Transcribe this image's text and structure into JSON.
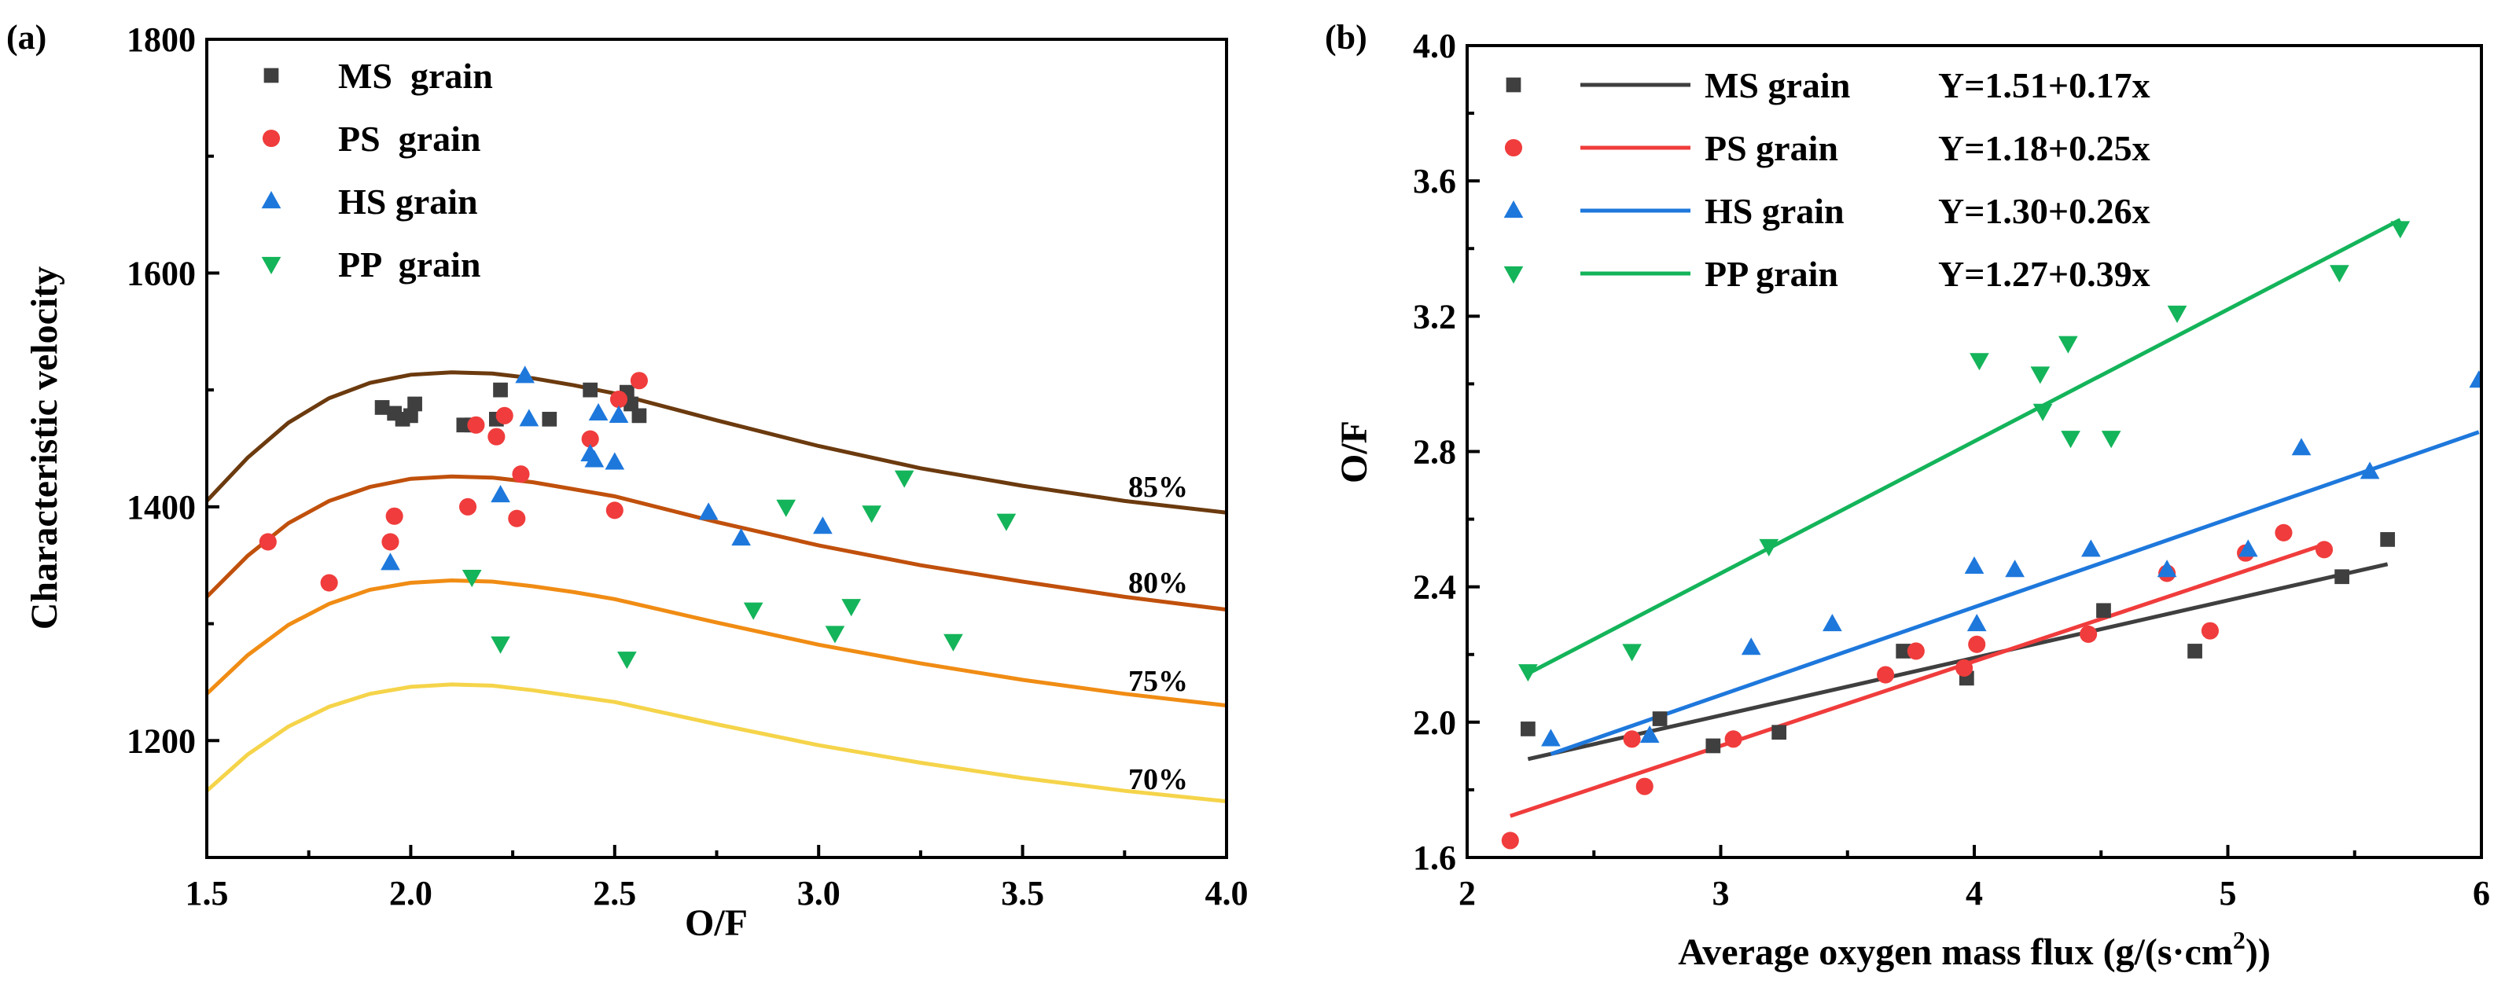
{
  "chart_data": [
    {
      "type": "scatter",
      "panel_label": "(a)",
      "xlabel": "O/F",
      "ylabel": "Characteristic velocity",
      "xlim": [
        1.5,
        4.0
      ],
      "ylim": [
        1100,
        1800
      ],
      "xticks": [
        "1.5",
        "2.0",
        "2.5",
        "3.0",
        "3.5",
        "4.0"
      ],
      "yticks": [
        "1200",
        "1400",
        "1600",
        "1800"
      ],
      "legend": [
        {
          "label": "MS  grain",
          "marker": "square",
          "color": "#3f3f3f"
        },
        {
          "label": "PS  grain",
          "marker": "circle",
          "color": "#f03c3c"
        },
        {
          "label": "HS grain",
          "marker": "triangle-up",
          "color": "#1e78dc"
        },
        {
          "label": "PP  grain",
          "marker": "triangle-down",
          "color": "#14b45a"
        }
      ],
      "series": [
        {
          "name": "MS grain",
          "x": [
            1.93,
            1.96,
            1.98,
            2.0,
            2.01,
            2.13,
            2.15,
            2.21,
            2.22,
            2.34,
            2.44,
            2.53,
            2.54,
            2.56
          ],
          "y": [
            1485,
            1480,
            1475,
            1478,
            1488,
            1470,
            1470,
            1475,
            1500,
            1475,
            1500,
            1498,
            1488,
            1478
          ]
        },
        {
          "name": "PS grain",
          "x": [
            1.65,
            1.8,
            1.95,
            1.96,
            2.14,
            2.16,
            2.21,
            2.23,
            2.26,
            2.27,
            2.44,
            2.5,
            2.51,
            2.56
          ],
          "y": [
            1370,
            1335,
            1370,
            1392,
            1400,
            1470,
            1460,
            1478,
            1390,
            1428,
            1458,
            1397,
            1492,
            1508
          ]
        },
        {
          "name": "HS grain",
          "x": [
            1.95,
            2.22,
            2.28,
            2.29,
            2.44,
            2.45,
            2.46,
            2.5,
            2.51,
            2.73,
            2.81,
            3.01
          ],
          "y": [
            1352,
            1410,
            1512,
            1475,
            1445,
            1440,
            1480,
            1438,
            1478,
            1395,
            1373,
            1383
          ]
        },
        {
          "name": "PP grain",
          "x": [
            2.15,
            2.22,
            2.53,
            2.84,
            2.92,
            3.04,
            3.08,
            3.13,
            3.21,
            3.33,
            3.46
          ],
          "y": [
            1340,
            1283,
            1270,
            1312,
            1400,
            1292,
            1315,
            1395,
            1425,
            1285,
            1388
          ]
        }
      ],
      "curves": [
        {
          "label": "85%",
          "color": "#6b3a0e",
          "x": [
            1.5,
            1.6,
            1.7,
            1.8,
            1.9,
            2.0,
            2.1,
            2.2,
            2.3,
            2.4,
            2.5,
            2.75,
            3.0,
            3.25,
            3.5,
            3.75,
            4.0
          ],
          "y": [
            1405,
            1442,
            1472,
            1493,
            1506,
            1513,
            1515,
            1514,
            1510,
            1504,
            1497,
            1474,
            1452,
            1433,
            1418,
            1405,
            1395
          ]
        },
        {
          "label": "80%",
          "color": "#c0500c",
          "x": [
            1.5,
            1.6,
            1.7,
            1.8,
            1.9,
            2.0,
            2.1,
            2.2,
            2.3,
            2.4,
            2.5,
            2.75,
            3.0,
            3.25,
            3.5,
            3.75,
            4.0
          ],
          "y": [
            1323,
            1358,
            1386,
            1405,
            1417,
            1424,
            1426,
            1425,
            1421,
            1415,
            1409,
            1387,
            1367,
            1350,
            1336,
            1323,
            1312
          ]
        },
        {
          "label": "75%",
          "color": "#f08c14",
          "x": [
            1.5,
            1.6,
            1.7,
            1.8,
            1.9,
            2.0,
            2.1,
            2.2,
            2.3,
            2.4,
            2.5,
            2.75,
            3.0,
            3.25,
            3.5,
            3.75,
            4.0
          ],
          "y": [
            1240,
            1273,
            1299,
            1317,
            1329,
            1335,
            1337,
            1336,
            1332,
            1327,
            1321,
            1301,
            1282,
            1266,
            1252,
            1240,
            1230
          ]
        },
        {
          "label": "70%",
          "color": "#f5d44a",
          "x": [
            1.5,
            1.6,
            1.7,
            1.8,
            1.9,
            2.0,
            2.1,
            2.2,
            2.3,
            2.4,
            2.5,
            2.75,
            3.0,
            3.25,
            3.5,
            3.75,
            4.0
          ],
          "y": [
            1157,
            1188,
            1212,
            1229,
            1240,
            1246,
            1248,
            1247,
            1243,
            1238,
            1233,
            1214,
            1196,
            1181,
            1168,
            1157,
            1148
          ]
        }
      ]
    },
    {
      "type": "scatter",
      "panel_label": "(b)",
      "xlabel": "Average oxygen mass flux (g/(s·cm",
      "xlabel_sup": "2",
      "xlabel_end": "))",
      "ylabel": "O/F",
      "xlim": [
        2,
        6
      ],
      "ylim": [
        1.6,
        4.0
      ],
      "xticks": [
        "2",
        "3",
        "4",
        "5",
        "6"
      ],
      "yticks": [
        "1.6",
        "2.0",
        "2.4",
        "2.8",
        "3.2",
        "3.6",
        "4.0"
      ],
      "legend": [
        {
          "label": "MS grain",
          "equation": "Y=1.51+0.17x",
          "marker": "square",
          "color": "#3f3f3f"
        },
        {
          "label": "PS grain",
          "equation": "Y=1.18+0.25x",
          "marker": "circle",
          "color": "#f03c3c"
        },
        {
          "label": "HS grain",
          "equation": "Y=1.30+0.26x",
          "marker": "triangle-up",
          "color": "#1e78dc"
        },
        {
          "label": "PP grain",
          "equation": "Y=1.27+0.39x",
          "marker": "triangle-down",
          "color": "#14b45a"
        }
      ],
      "series": [
        {
          "name": "MS grain",
          "x": [
            2.24,
            2.76,
            2.97,
            3.23,
            3.72,
            3.97,
            4.51,
            4.87,
            5.45,
            5.63
          ],
          "y": [
            1.98,
            2.01,
            1.93,
            1.97,
            2.21,
            2.13,
            2.33,
            2.21,
            2.43,
            2.54
          ],
          "fit": [
            1.51,
            0.17
          ],
          "fit_range": [
            2.24,
            5.63
          ]
        },
        {
          "name": "PS grain",
          "x": [
            2.17,
            2.65,
            2.7,
            3.05,
            3.65,
            3.77,
            3.96,
            4.01,
            4.45,
            4.76,
            4.93,
            5.07,
            5.22,
            5.38
          ],
          "y": [
            1.65,
            1.95,
            1.81,
            1.95,
            2.14,
            2.21,
            2.16,
            2.23,
            2.26,
            2.44,
            2.27,
            2.5,
            2.56,
            2.51
          ],
          "fit": [
            1.18,
            0.25
          ],
          "fit_range": [
            2.17,
            5.38
          ]
        },
        {
          "name": "HS grain",
          "x": [
            2.33,
            2.72,
            3.12,
            3.44,
            4.0,
            4.01,
            4.16,
            4.46,
            4.76,
            5.08,
            5.29,
            5.56,
            5.99
          ],
          "y": [
            1.95,
            1.96,
            2.22,
            2.29,
            2.46,
            2.29,
            2.45,
            2.51,
            2.45,
            2.51,
            2.81,
            2.74,
            3.01
          ],
          "fit": [
            1.3,
            0.26
          ],
          "fit_range": [
            2.33,
            5.99
          ]
        },
        {
          "name": "PP grain",
          "x": [
            2.24,
            2.65,
            3.19,
            4.02,
            4.26,
            4.27,
            4.37,
            4.38,
            4.54,
            4.8,
            5.44,
            5.68
          ],
          "y": [
            2.15,
            2.21,
            2.52,
            3.07,
            3.03,
            2.92,
            3.12,
            2.84,
            2.84,
            3.21,
            3.33,
            3.46
          ],
          "fit": [
            1.27,
            0.39
          ],
          "fit_range": [
            2.24,
            5.68
          ]
        }
      ]
    }
  ]
}
